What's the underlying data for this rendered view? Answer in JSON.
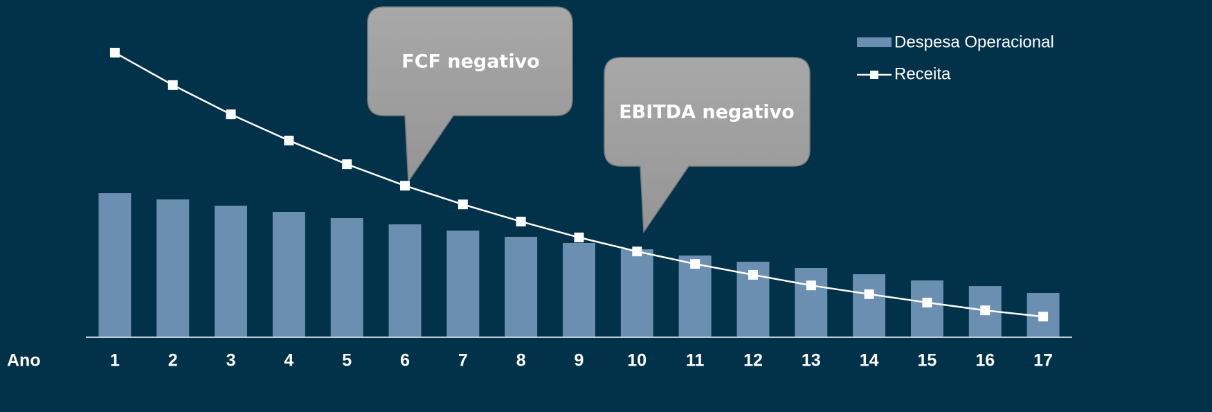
{
  "chart_data": {
    "type": "bar_line",
    "x_label": "Ano",
    "categories": [
      "1",
      "2",
      "3",
      "4",
      "5",
      "6",
      "7",
      "8",
      "9",
      "10",
      "11",
      "12",
      "13",
      "14",
      "15",
      "16",
      "17"
    ],
    "series": [
      {
        "name": "Despesa Operacional",
        "type": "bar",
        "color": "#6a8fb0",
        "values": [
          46,
          44,
          42,
          40,
          38,
          36,
          34,
          32,
          30,
          28,
          26,
          24,
          22,
          20,
          18,
          16.2,
          14
        ]
      },
      {
        "name": "Receita",
        "type": "line",
        "color": "#ffffff",
        "values": [
          91.1,
          80.7,
          71.3,
          62.9,
          55.3,
          48.4,
          42.4,
          36.9,
          31.8,
          27.3,
          23.3,
          19.8,
          16.4,
          13.6,
          10.9,
          8.4,
          6.4
        ]
      }
    ],
    "ylim": [
      0,
      100
    ],
    "annotations": [
      {
        "text": "FCF negativo"
      },
      {
        "text": "EBITDA negativo"
      }
    ]
  }
}
